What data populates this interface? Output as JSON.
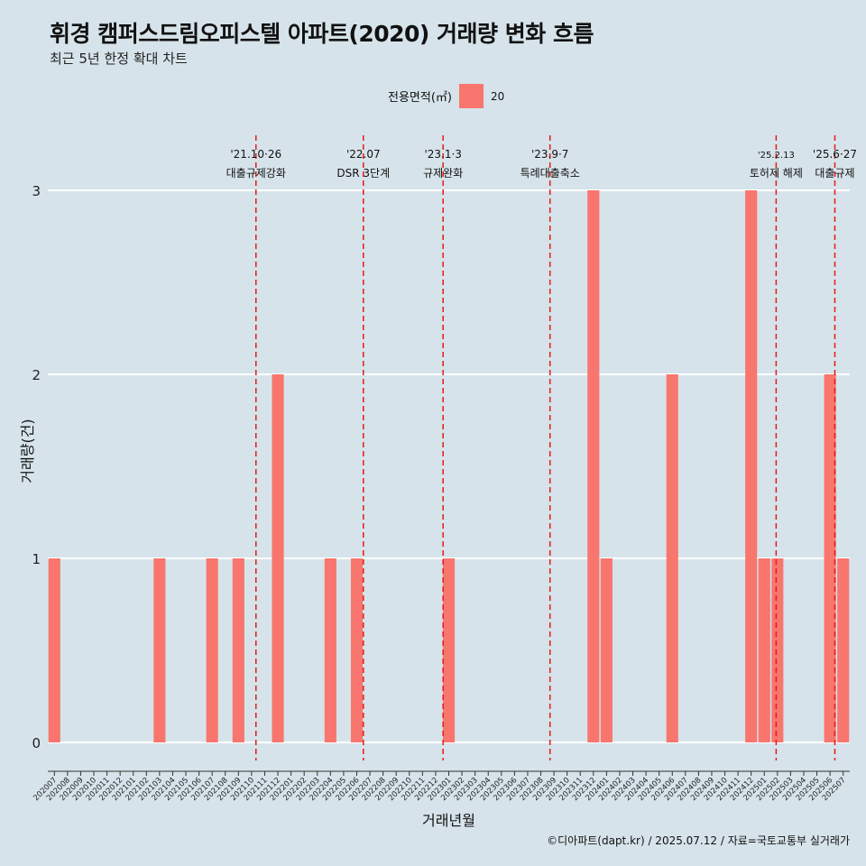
{
  "title": "휘경 캠퍼스드림오피스텔 아파트(2020) 거래량 변화 흐름",
  "subtitle": "최근 5년 한정 확대 차트",
  "legend": {
    "title": "전용면적(㎡)",
    "label": "20"
  },
  "caption": "©디아파트(dapt.kr) / 2025.07.12 / 자료=국토교통부 실거래가",
  "colors": {
    "bar": "#f8766d",
    "event_line": "#e41a1c",
    "background": "#d6e3ea",
    "grid": "#ffffff"
  },
  "chart_data": {
    "type": "bar",
    "xlabel": "거래년월",
    "ylabel": "거래량(건)",
    "ylim": [
      0,
      3
    ],
    "yticks": [
      0,
      1,
      2,
      3
    ],
    "categories": [
      "202007",
      "202008",
      "202009",
      "202010",
      "202011",
      "202012",
      "202101",
      "202102",
      "202103",
      "202104",
      "202105",
      "202106",
      "202107",
      "202108",
      "202109",
      "202110",
      "202111",
      "202112",
      "202201",
      "202202",
      "202203",
      "202204",
      "202205",
      "202206",
      "202207",
      "202208",
      "202209",
      "202210",
      "202211",
      "202212",
      "202301",
      "202302",
      "202303",
      "202304",
      "202305",
      "202306",
      "202307",
      "202308",
      "202309",
      "202310",
      "202311",
      "202312",
      "202401",
      "202402",
      "202403",
      "202404",
      "202405",
      "202406",
      "202407",
      "202408",
      "202409",
      "202410",
      "202411",
      "202412",
      "202501",
      "202502",
      "202503",
      "202504",
      "202505",
      "202506",
      "202507"
    ],
    "series": [
      {
        "values": [
          1,
          0,
          0,
          0,
          0,
          0,
          0,
          0,
          1,
          0,
          0,
          0,
          1,
          0,
          1,
          0,
          0,
          2,
          0,
          0,
          0,
          1,
          0,
          1,
          0,
          0,
          0,
          0,
          0,
          0,
          1,
          0,
          0,
          0,
          0,
          0,
          0,
          0,
          0,
          0,
          0,
          3,
          1,
          0,
          0,
          0,
          0,
          2,
          0,
          0,
          0,
          0,
          0,
          3,
          1,
          1,
          0,
          0,
          0,
          2,
          1
        ]
      }
    ],
    "events": [
      {
        "date": "2021-10-26",
        "label_top": "'21.10·26",
        "label_bottom": "대출규제강화"
      },
      {
        "date": "2022-07",
        "label_top": "'22.07",
        "label_bottom": "DSR 3단계"
      },
      {
        "date": "2023-01-03",
        "label_top": "'23.1·3",
        "label_bottom": "규제완화"
      },
      {
        "date": "2023-09-07",
        "label_top": "'23.9·7",
        "label_bottom": "특례대출축소"
      },
      {
        "date": "2025-02-13",
        "label_top": "'25.2.13",
        "label_bottom": "토허제 해제"
      },
      {
        "date": "2025-06-27",
        "label_top": "'25.6·27",
        "label_bottom": "대출규제"
      }
    ],
    "grid": true,
    "legend_position": "top"
  }
}
